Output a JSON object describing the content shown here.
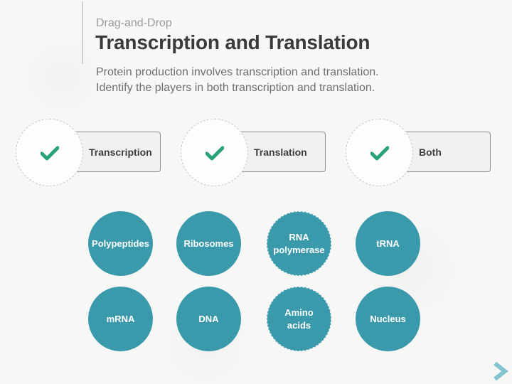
{
  "header": {
    "eyebrow": "Drag-and-Drop",
    "title": "Transcription and Translation",
    "instruction_line1": "Protein production involves transcription and translation.",
    "instruction_line2": "Identify the players in both transcription and translation."
  },
  "targets": [
    {
      "label": "Transcription",
      "status": "correct"
    },
    {
      "label": "Translation",
      "status": "correct"
    },
    {
      "label": "Both",
      "status": "correct"
    }
  ],
  "items": [
    {
      "label": "Polypeptides"
    },
    {
      "label": "Ribosomes"
    },
    {
      "label": "RNA polymerase"
    },
    {
      "label": "tRNA"
    },
    {
      "label": "mRNA"
    },
    {
      "label": "DNA"
    },
    {
      "label": "Amino acids"
    },
    {
      "label": "Nucleus"
    }
  ],
  "navigation": {
    "next_icon": "chevron-right-icon"
  },
  "colors": {
    "chip": "#3a9aac",
    "check": "#2aa37a",
    "next_arrow": "#84c4cf",
    "title": "#3a3a3a"
  }
}
